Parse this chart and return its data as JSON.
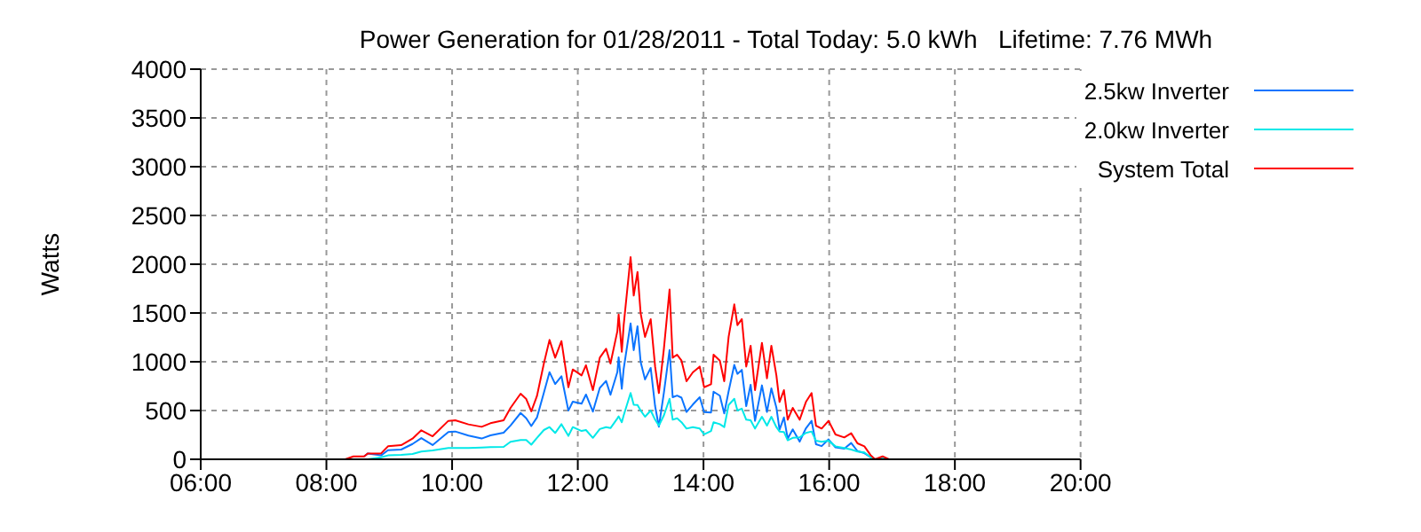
{
  "chart_data": {
    "type": "line",
    "title": "Power Generation for 01/28/2011 - Total Today: 5.0 kWh   Lifetime: 7.76 MWh",
    "ylabel": "Watts",
    "x": [
      8.3,
      8.43,
      8.6,
      8.66,
      8.87,
      8.98,
      9.19,
      9.37,
      9.51,
      9.69,
      9.94,
      10.05,
      10.26,
      10.47,
      10.61,
      10.82,
      10.93,
      11.09,
      11.18,
      11.26,
      11.35,
      11.46,
      11.55,
      11.64,
      11.74,
      11.85,
      11.92,
      12.06,
      12.13,
      12.24,
      12.35,
      12.45,
      12.52,
      12.63,
      12.65,
      12.7,
      12.73,
      12.84,
      12.89,
      12.95,
      13.0,
      13.07,
      13.16,
      13.23,
      13.29,
      13.37,
      13.46,
      13.51,
      13.58,
      13.65,
      13.73,
      13.83,
      13.94,
      14.01,
      14.12,
      14.16,
      14.26,
      14.33,
      14.4,
      14.49,
      14.54,
      14.61,
      14.68,
      14.75,
      14.82,
      14.93,
      15.01,
      15.08,
      15.16,
      15.21,
      15.28,
      15.34,
      15.42,
      15.53,
      15.63,
      15.72,
      15.79,
      15.88,
      15.99,
      16.1,
      16.24,
      16.35,
      16.45,
      16.56,
      16.66,
      16.73,
      16.85,
      16.95
    ],
    "series": [
      {
        "name": "2.5kw Inverter",
        "color": "#0a74ff",
        "values": [
          null,
          null,
          30,
          60,
          40,
          93,
          100,
          157,
          217,
          146,
          279,
          285,
          243,
          213,
          245,
          273,
          347,
          475,
          420,
          341,
          428,
          682,
          894,
          772,
          852,
          499,
          591,
          570,
          664,
          489,
          732,
          803,
          662,
          895,
          1045,
          723,
          926,
          1394,
          1119,
          1364,
          997,
          819,
          937,
          545,
          334,
          683,
          1120,
          636,
          653,
          632,
          485,
          561,
          636,
          484,
          480,
          693,
          652,
          470,
          698,
          968,
          876,
          917,
          545,
          764,
          394,
          758,
          485,
          728,
          530,
          303,
          429,
          211,
          307,
          181,
          318,
          394,
          155,
          135,
          204,
          122,
          109,
          167,
          84,
          63,
          22,
          0,
          null,
          null
        ]
      },
      {
        "name": "2.0kw Inverter",
        "color": "#00e8e8",
        "values": [
          0,
          0,
          0,
          0,
          20,
          40,
          45,
          55,
          80,
          90,
          115,
          115,
          115,
          120,
          125,
          127,
          180,
          198,
          198,
          150,
          220,
          300,
          330,
          270,
          360,
          240,
          330,
          290,
          300,
          220,
          310,
          330,
          320,
          420,
          440,
          380,
          450,
          679,
          560,
          557,
          500,
          436,
          500,
          406,
          345,
          450,
          620,
          406,
          420,
          380,
          315,
          330,
          315,
          255,
          290,
          380,
          360,
          330,
          557,
          620,
          500,
          520,
          406,
          400,
          315,
          436,
          345,
          436,
          330,
          285,
          280,
          195,
          220,
          225,
          270,
          285,
          190,
          180,
          190,
          133,
          115,
          100,
          80,
          70,
          20,
          0,
          15,
          0
        ]
      },
      {
        "name": "System Total",
        "color": "#ff0000",
        "values": [
          0,
          30,
          30,
          60,
          60,
          133,
          145,
          212,
          297,
          236,
          394,
          400,
          358,
          333,
          370,
          400,
          527,
          673,
          618,
          491,
          648,
          982,
          1224,
          1042,
          1212,
          739,
          921,
          860,
          964,
          709,
          1042,
          1133,
          982,
          1315,
          1485,
          1103,
          1376,
          2073,
          1679,
          1921,
          1497,
          1255,
          1437,
          951,
          679,
          1133,
          1740,
          1042,
          1073,
          1012,
          800,
          891,
          951,
          739,
          770,
          1073,
          1012,
          800,
          1255,
          1588,
          1376,
          1437,
          951,
          1164,
          709,
          1194,
          830,
          1164,
          860,
          588,
          709,
          406,
          527,
          406,
          588,
          679,
          345,
          315,
          394,
          255,
          224,
          267,
          164,
          133,
          42,
          0,
          30,
          0
        ]
      }
    ],
    "xlim": [
      6,
      20
    ],
    "xticks": [
      {
        "value": 6,
        "label": "06:00"
      },
      {
        "value": 8,
        "label": "08:00"
      },
      {
        "value": 10,
        "label": "10:00"
      },
      {
        "value": 12,
        "label": "12:00"
      },
      {
        "value": 14,
        "label": "14:00"
      },
      {
        "value": 16,
        "label": "16:00"
      },
      {
        "value": 18,
        "label": "18:00"
      },
      {
        "value": 20,
        "label": "20:00"
      }
    ],
    "ylim": [
      0,
      4000
    ],
    "yticks": [
      0,
      500,
      1000,
      1500,
      2000,
      2500,
      3000,
      3500,
      4000
    ],
    "grid": true,
    "legend": "top right",
    "marker": "none",
    "line_style": "solid"
  }
}
